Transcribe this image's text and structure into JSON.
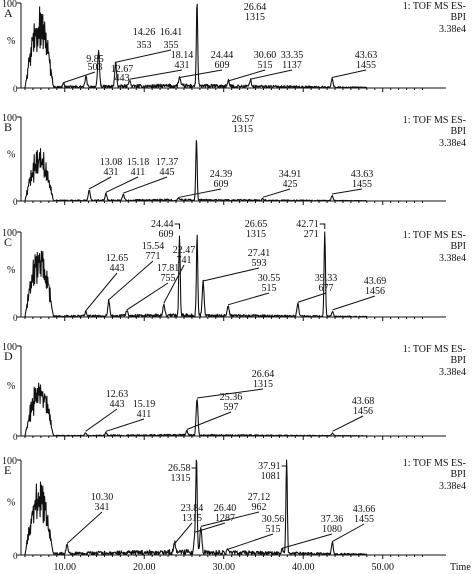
{
  "figure": {
    "x_axis_label": "Time",
    "x_ticks": [
      10,
      20,
      30,
      40,
      50
    ],
    "x_tick_labels": [
      "10.00",
      "20.00",
      "30.00",
      "40.00",
      "50.00"
    ],
    "y_unit_label": "%",
    "y_top_label": "100",
    "y_zero_label": "0"
  },
  "chart_data": [
    {
      "type": "line",
      "panel": "A",
      "xlim": [
        0,
        56
      ],
      "ylim": [
        0,
        100
      ],
      "info": [
        "1: TOF MS ES-",
        "BPI",
        "3.38e4"
      ],
      "peaks": [
        {
          "rt": 9.85,
          "mz": "503",
          "h": 4
        },
        {
          "rt": 12.67,
          "mz": "443",
          "h": 12
        },
        {
          "rt": 14.26,
          "mz": "353",
          "h": 42
        },
        {
          "rt": 16.41,
          "mz": "355",
          "h": 28
        },
        {
          "rt": 18.14,
          "mz": "431",
          "h": 8
        },
        {
          "rt": 24.44,
          "mz": "609",
          "h": 10
        },
        {
          "rt": 26.64,
          "mz": "1315",
          "h": 100
        },
        {
          "rt": 30.6,
          "mz": "515",
          "h": 6
        },
        {
          "rt": 33.35,
          "mz": "1137",
          "h": 8
        },
        {
          "rt": 43.63,
          "mz": "1455",
          "h": 10
        }
      ],
      "labels": [
        {
          "rt": "9.85",
          "mz": "503"
        },
        {
          "rt": "12.67",
          "mz": "443"
        },
        {
          "rt": "14.26",
          "mz": "353"
        },
        {
          "rt": "16.41",
          "mz": "355"
        },
        {
          "rt": "18.14",
          "mz": "431"
        },
        {
          "rt": "24.44",
          "mz": "609"
        },
        {
          "rt": "26.64",
          "mz": "1315"
        },
        {
          "rt": "30.60",
          "mz": "515"
        },
        {
          "rt": "33.35",
          "mz": "1137"
        },
        {
          "rt": "43.63",
          "mz": "1455"
        }
      ]
    },
    {
      "type": "line",
      "panel": "B",
      "xlim": [
        0,
        56
      ],
      "ylim": [
        0,
        100
      ],
      "info": [
        "1: TOF MS ES-",
        "BPI",
        "3.38e4"
      ],
      "peaks": [
        {
          "rt": 13.08,
          "mz": "431",
          "h": 12
        },
        {
          "rt": 15.18,
          "mz": "411",
          "h": 8
        },
        {
          "rt": 17.37,
          "mz": "445",
          "h": 7
        },
        {
          "rt": 24.39,
          "mz": "609",
          "h": 2
        },
        {
          "rt": 26.57,
          "mz": "1315",
          "h": 73
        },
        {
          "rt": 34.91,
          "mz": "425",
          "h": 2
        },
        {
          "rt": 43.63,
          "mz": "1455",
          "h": 6
        }
      ],
      "labels": [
        {
          "rt": "13.08",
          "mz": "431"
        },
        {
          "rt": "15.18",
          "mz": "411"
        },
        {
          "rt": "17.37",
          "mz": "445"
        },
        {
          "rt": "24.39",
          "mz": "609"
        },
        {
          "rt": "26.57",
          "mz": "1315"
        },
        {
          "rt": "34.91",
          "mz": "425"
        },
        {
          "rt": "43.63",
          "mz": "1455"
        }
      ]
    },
    {
      "type": "line",
      "panel": "C",
      "xlim": [
        0,
        56
      ],
      "ylim": [
        0,
        100
      ],
      "info": [
        "1: TOF MS ES-",
        "BPI",
        "3.38e4"
      ],
      "peaks": [
        {
          "rt": 12.65,
          "mz": "443",
          "h": 5
        },
        {
          "rt": 15.54,
          "mz": "771",
          "h": 18
        },
        {
          "rt": 17.81,
          "mz": "755",
          "h": 6
        },
        {
          "rt": 22.47,
          "mz": "741",
          "h": 14
        },
        {
          "rt": 24.44,
          "mz": "609",
          "h": 95
        },
        {
          "rt": 26.65,
          "mz": "1315",
          "h": 94
        },
        {
          "rt": 27.41,
          "mz": "593",
          "h": 40
        },
        {
          "rt": 30.55,
          "mz": "515",
          "h": 12
        },
        {
          "rt": 39.33,
          "mz": "677",
          "h": 15
        },
        {
          "rt": 42.71,
          "mz": "271",
          "h": 100
        },
        {
          "rt": 43.69,
          "mz": "1456",
          "h": 6
        }
      ],
      "labels": [
        {
          "rt": "12.65",
          "mz": "443"
        },
        {
          "rt": "15.54",
          "mz": "771"
        },
        {
          "rt": "17.81",
          "mz": "755"
        },
        {
          "rt": "22.47",
          "mz": "741"
        },
        {
          "rt": "24.44",
          "mz": "609"
        },
        {
          "rt": "26.65",
          "mz": "1315"
        },
        {
          "rt": "27.41",
          "mz": "593"
        },
        {
          "rt": "30.55",
          "mz": "515"
        },
        {
          "rt": "39.33",
          "mz": "677"
        },
        {
          "rt": "42.71",
          "mz": "271"
        },
        {
          "rt": "43.69",
          "mz": "1456"
        }
      ]
    },
    {
      "type": "line",
      "panel": "D",
      "xlim": [
        0,
        56
      ],
      "ylim": [
        0,
        100
      ],
      "info": [
        "1: TOF MS ES-",
        "BPI",
        "3.38e4"
      ],
      "peaks": [
        {
          "rt": 12.63,
          "mz": "443",
          "h": 3
        },
        {
          "rt": 15.19,
          "mz": "411",
          "h": 3
        },
        {
          "rt": 25.36,
          "mz": "597",
          "h": 5
        },
        {
          "rt": 26.64,
          "mz": "1315",
          "h": 40
        },
        {
          "rt": 43.68,
          "mz": "1456",
          "h": 3
        }
      ],
      "labels": [
        {
          "rt": "12.63",
          "mz": "443"
        },
        {
          "rt": "15.19",
          "mz": "411"
        },
        {
          "rt": "25.36",
          "mz": "597"
        },
        {
          "rt": "26.64",
          "mz": "1315"
        },
        {
          "rt": "43.68",
          "mz": "1456"
        }
      ]
    },
    {
      "type": "line",
      "panel": "E",
      "xlim": [
        0,
        56
      ],
      "ylim": [
        0,
        100
      ],
      "info": [
        "1: TOF MS ES-",
        "BPI",
        "3.38e4"
      ],
      "peaks": [
        {
          "rt": 10.3,
          "mz": "341",
          "h": 10
        },
        {
          "rt": 23.84,
          "mz": "1315",
          "h": 10
        },
        {
          "rt": 26.4,
          "mz": "1287",
          "h": 22
        },
        {
          "rt": 26.58,
          "mz": "1315",
          "h": 95
        },
        {
          "rt": 27.12,
          "mz": "962",
          "h": 28
        },
        {
          "rt": 30.56,
          "mz": "515",
          "h": 4
        },
        {
          "rt": 37.36,
          "mz": "1080",
          "h": 5
        },
        {
          "rt": 37.91,
          "mz": "1081",
          "h": 100
        },
        {
          "rt": 43.66,
          "mz": "1455",
          "h": 12
        }
      ],
      "labels": [
        {
          "rt": "10.30",
          "mz": "341"
        },
        {
          "rt": "23.84",
          "mz": "1315"
        },
        {
          "rt": "26.40",
          "mz": "1287"
        },
        {
          "rt": "26.58",
          "mz": "1315"
        },
        {
          "rt": "27.12",
          "mz": "962"
        },
        {
          "rt": "30.56",
          "mz": "515"
        },
        {
          "rt": "37.36",
          "mz": "1080"
        },
        {
          "rt": "37.91",
          "mz": "1081"
        },
        {
          "rt": "43.66",
          "mz": "1455"
        }
      ]
    }
  ]
}
